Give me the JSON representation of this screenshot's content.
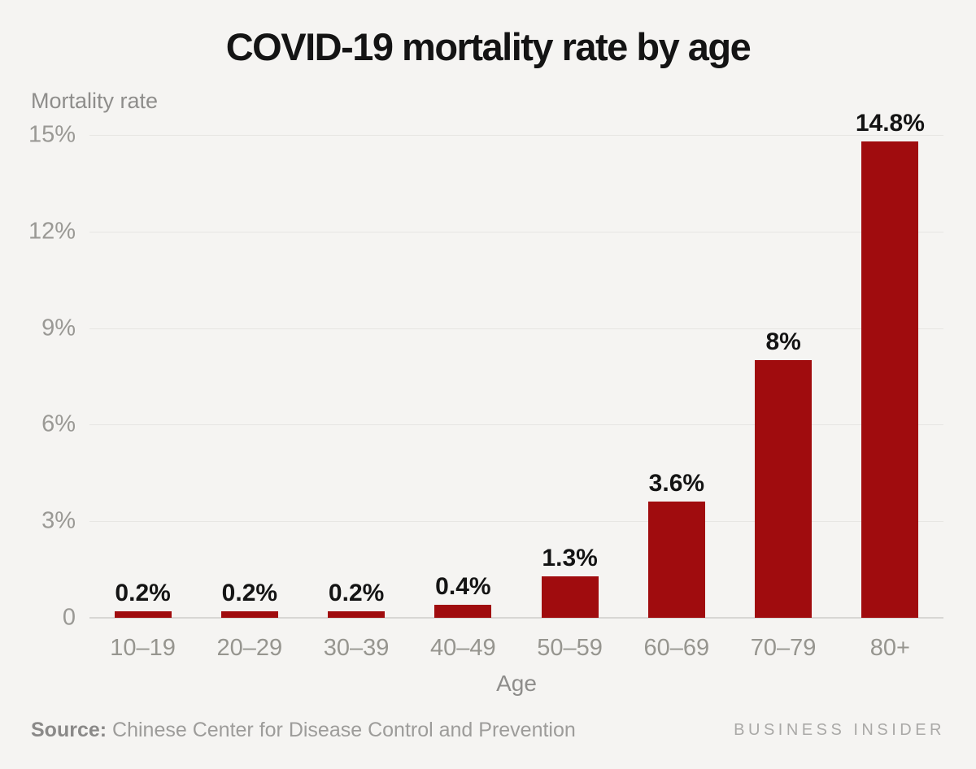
{
  "chart": {
    "title": "COVID-19 mortality rate by age",
    "y_axis_title": "Mortality rate",
    "x_axis_title": "Age"
  },
  "chart_data": {
    "type": "bar",
    "title": "COVID-19 mortality rate by age",
    "categories": [
      "10–19",
      "20–29",
      "30–39",
      "40–49",
      "50–59",
      "60–69",
      "70–79",
      "80+"
    ],
    "values": [
      0.2,
      0.2,
      0.2,
      0.4,
      1.3,
      3.6,
      8,
      14.8
    ],
    "value_labels": [
      "0.2%",
      "0.2%",
      "0.2%",
      "0.4%",
      "1.3%",
      "3.6%",
      "8%",
      "14.8%"
    ],
    "xlabel": "Age",
    "ylabel": "Mortality rate",
    "ylim": [
      0,
      15
    ],
    "yticks": [
      0,
      3,
      6,
      9,
      12,
      15
    ],
    "ytick_labels": [
      "0",
      "3%",
      "6%",
      "9%",
      "12%",
      "15%"
    ],
    "grid": "horizontal",
    "legend": "none",
    "bar_color": "#a00c0e"
  },
  "footer": {
    "source_label": "Source:",
    "source_text": "Chinese Center for Disease Control and Prevention",
    "brand": "BUSINESS INSIDER"
  },
  "colors": {
    "background": "#f5f4f2",
    "bar": "#a00c0e",
    "gridline": "#e7e6e3",
    "baseline": "#d8d7d4",
    "title_text": "#141414",
    "axis_text": "#9a9995"
  }
}
